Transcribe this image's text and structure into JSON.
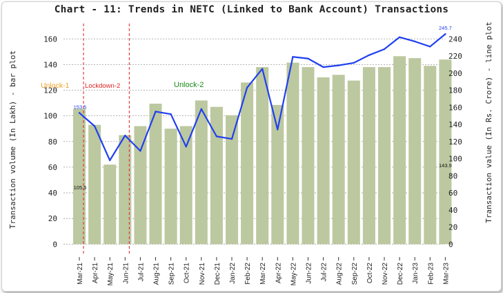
{
  "chart_data": {
    "type": "bar+line",
    "title": "Chart - 11: Trends in NETC (Linked to Bank Account) Transactions",
    "ylabel_left": "Transaction volume (In Lakh) - bar plot",
    "ylabel_right": "Transaction value (In Rs. Crore) - line plot",
    "categories": [
      "Mar-21",
      "Apr-21",
      "May-21",
      "Jun-21",
      "Jul-21",
      "Aug-21",
      "Sep-21",
      "Oct-21",
      "Nov-21",
      "Dec-21",
      "Jan-22",
      "Feb-22",
      "Mar-22",
      "Apr-22",
      "May-22",
      "Jun-22",
      "Jul-22",
      "Aug-22",
      "Sep-22",
      "Oct-22",
      "Nov-22",
      "Dec-22",
      "Jan-23",
      "Feb-23",
      "Mar-23"
    ],
    "y_left_ticks": [
      0,
      20,
      40,
      60,
      80,
      100,
      120,
      140,
      160
    ],
    "y_right_ticks": [
      0,
      20,
      40,
      60,
      80,
      100,
      120,
      140,
      160,
      180,
      200,
      220,
      240
    ],
    "ylim_left": [
      -9,
      172
    ],
    "ylim_right": [
      -13.5,
      258
    ],
    "series": [
      {
        "name": "Transaction volume (In Lakh)",
        "type": "bar",
        "axis": "left",
        "color": "#bcc89f",
        "values": [
          105.5,
          93,
          62,
          85,
          92,
          109.5,
          90,
          92,
          112,
          107,
          100.5,
          126,
          138,
          108.5,
          141.5,
          138,
          130,
          132,
          127.5,
          138,
          138,
          146.5,
          145,
          139,
          143.9
        ]
      },
      {
        "name": "Transaction value (In Rs. Crore)",
        "type": "line",
        "axis": "right",
        "color": "#1f3ff0",
        "values": [
          153.5,
          138,
          98,
          127,
          109,
          155,
          152,
          114,
          158,
          126,
          123,
          183,
          205,
          134,
          219,
          217,
          207,
          209,
          212,
          221,
          228,
          242,
          237,
          231,
          245.7
        ]
      }
    ],
    "data_labels": {
      "first_bar": "105.5",
      "last_bar": "143.9",
      "first_line": "153.5",
      "last_line": "245.7"
    },
    "annotations": [
      {
        "text": "Unlock-1",
        "color": "#f0a020"
      },
      {
        "text": "Lockdown-2",
        "color": "#e02020"
      },
      {
        "text": "Unlock-2",
        "color": "#1a8a1a"
      }
    ],
    "phase_lines": {
      "color": "#e03030",
      "after_categories": [
        "Mar-21",
        "Jun-21"
      ]
    },
    "grid": true,
    "legend": "none"
  }
}
